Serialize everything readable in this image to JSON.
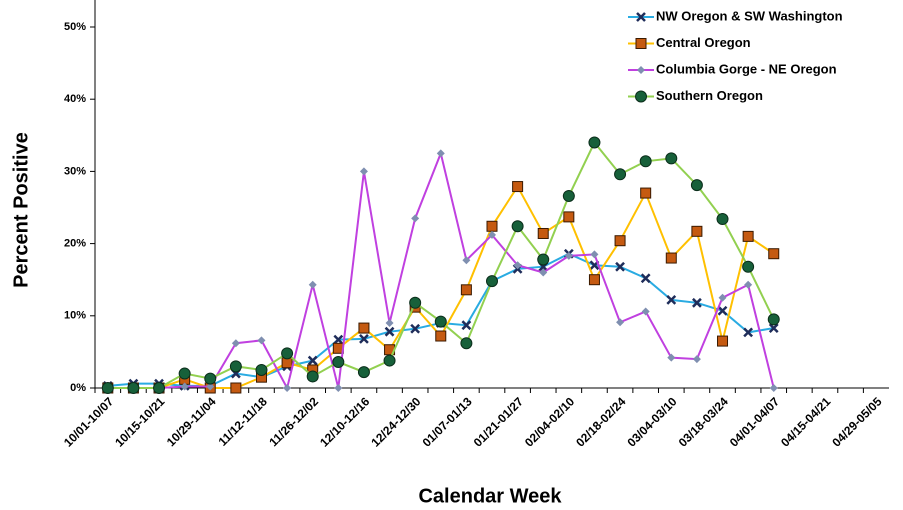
{
  "chart_data": {
    "type": "line",
    "x_label": "Calendar Week",
    "y_label": "Percent Positive",
    "categories": [
      "10/01-10/07",
      null,
      "10/15-10/21",
      null,
      "10/29-11/04",
      null,
      "11/12-11/18",
      null,
      "11/26-12/02",
      null,
      "12/10-12/16",
      null,
      "12/24-12/30",
      null,
      "01/07-01/13",
      null,
      "01/21-01/27",
      null,
      "02/04-02/10",
      null,
      "02/18-02/24",
      null,
      "03/04-03/10",
      null,
      "03/18-03/24",
      null,
      "04/01-04/07",
      null,
      "04/15-04/21",
      null,
      "04/29-05/05"
    ],
    "ylim": [
      0,
      50
    ],
    "yticks": [
      {
        "value": 0,
        "label": "0%"
      },
      {
        "value": 10,
        "label": "10%"
      },
      {
        "value": 20,
        "label": "20%"
      },
      {
        "value": 30,
        "label": "30%"
      },
      {
        "value": 40,
        "label": "40%"
      },
      {
        "value": 50,
        "label": "50%"
      }
    ],
    "legend": "upper right",
    "series": [
      {
        "name": "NW Oregon & SW Washington",
        "color": "#29abe2",
        "marker": "x",
        "marker_color": "#1f2d5a",
        "values": [
          0.3,
          0.6,
          0.6,
          0.3,
          0.3,
          2.0,
          1.5,
          3.0,
          3.8,
          6.7,
          6.8,
          7.8,
          8.2,
          9.0,
          8.7,
          14.8,
          16.5,
          16.8,
          18.6,
          17.0,
          16.8,
          15.2,
          12.2,
          11.8,
          10.7,
          7.7,
          8.3,
          null,
          null,
          null,
          null
        ]
      },
      {
        "name": "Central Oregon",
        "color": "#ffc000",
        "marker": "square",
        "marker_color": "#c55a11",
        "values": [
          0,
          0,
          0,
          1.2,
          0,
          0,
          1.5,
          3.5,
          2.5,
          5.5,
          8.3,
          5.3,
          11.2,
          7.2,
          13.6,
          22.4,
          27.9,
          21.4,
          23.7,
          15.0,
          20.4,
          27.0,
          18.0,
          21.7,
          6.5,
          21.0,
          18.6,
          null,
          null,
          null,
          null
        ]
      },
      {
        "name": "Columbia Gorge - NE Oregon",
        "color": "#c040e0",
        "marker": "diamond",
        "marker_color": "#7f8fb0",
        "values": [
          0,
          0,
          0,
          0.2,
          0.2,
          6.2,
          6.6,
          0,
          14.3,
          0,
          30.0,
          9.0,
          23.5,
          32.5,
          17.7,
          21.2,
          17.0,
          16.0,
          18.3,
          18.5,
          9.1,
          10.6,
          4.2,
          4.0,
          12.5,
          14.3,
          0,
          null,
          null,
          null,
          null
        ]
      },
      {
        "name": "Southern Oregon",
        "color": "#92d050",
        "marker": "circle",
        "marker_color": "#17603a",
        "values": [
          0,
          0,
          0,
          2.0,
          1.3,
          3.0,
          2.5,
          4.8,
          1.6,
          3.6,
          2.2,
          3.8,
          11.8,
          9.2,
          6.2,
          14.8,
          22.4,
          17.8,
          26.6,
          34.0,
          29.6,
          31.4,
          31.8,
          28.1,
          23.4,
          16.8,
          9.5,
          null,
          null,
          null,
          null
        ]
      }
    ]
  }
}
